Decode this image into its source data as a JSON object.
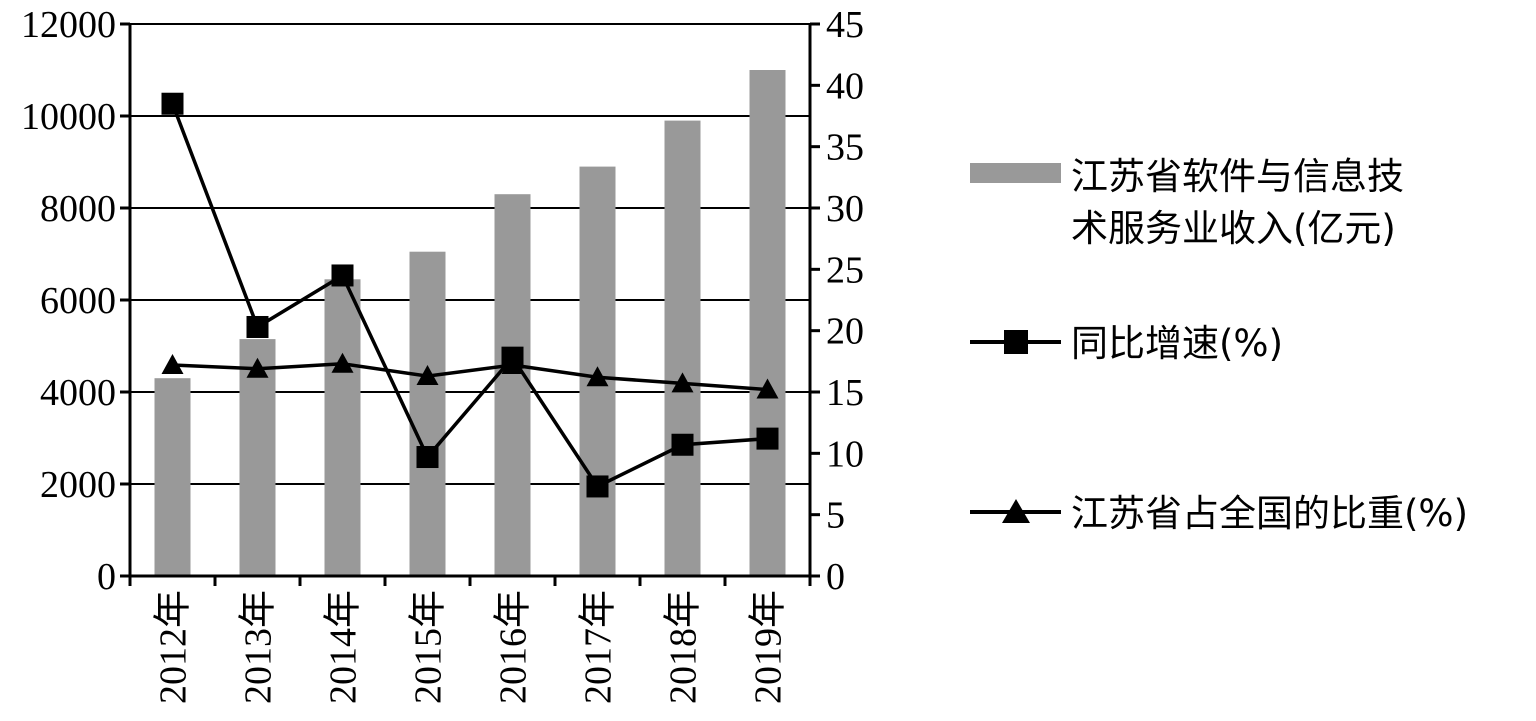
{
  "chart_data": {
    "type": "bar",
    "categories": [
      "2012年",
      "2013年",
      "2014年",
      "2015年",
      "2016年",
      "2017年",
      "2018年",
      "2019年"
    ],
    "series": [
      {
        "name": "江苏省软件与信息技术服务业收入(亿元)",
        "kind": "bar",
        "axis": "left",
        "color": "#999999",
        "values": [
          4300,
          5150,
          6450,
          7050,
          8300,
          8900,
          9900,
          11000
        ]
      },
      {
        "name": "同比增速(%)",
        "kind": "line",
        "marker": "square",
        "axis": "right",
        "color": "#000000",
        "values": [
          38.5,
          20.3,
          24.5,
          9.7,
          17.8,
          7.3,
          10.7,
          11.2
        ]
      },
      {
        "name": "江苏省占全国的比重(%)",
        "kind": "line",
        "marker": "triangle",
        "axis": "right",
        "color": "#000000",
        "values": [
          17.2,
          16.9,
          17.3,
          16.3,
          17.2,
          16.2,
          15.7,
          15.2
        ]
      }
    ],
    "left_axis": {
      "ylim": [
        0,
        12000
      ],
      "ticks": [
        "0",
        "2000",
        "4000",
        "6000",
        "8000",
        "10000",
        "12000"
      ]
    },
    "right_axis": {
      "ylim": [
        0,
        45
      ],
      "ticks": [
        "0",
        "5",
        "10",
        "15",
        "20",
        "25",
        "30",
        "35",
        "40",
        "45"
      ]
    },
    "grid": true,
    "legend_position": "right",
    "legend_line1": "江苏省软件与信息技",
    "legend_line2": "术服务业收入(亿元)"
  }
}
